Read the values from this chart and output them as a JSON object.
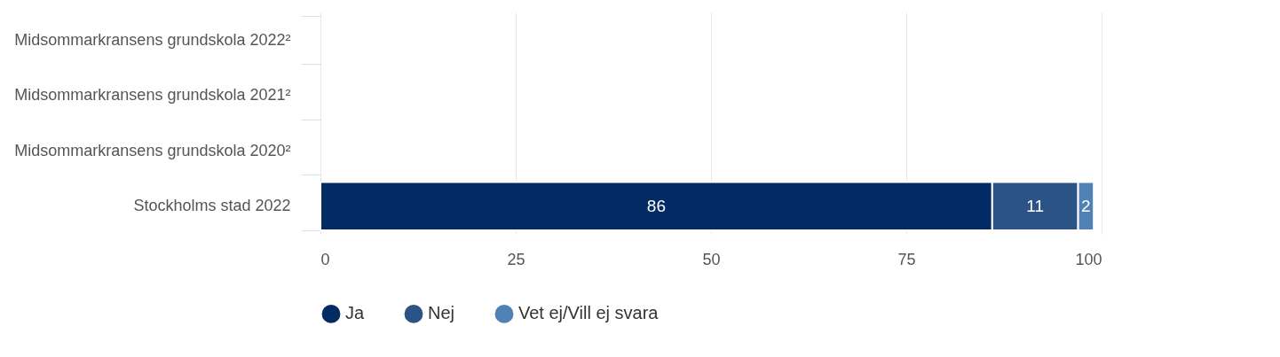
{
  "chart_data": {
    "type": "bar",
    "orientation": "horizontal",
    "stacked": true,
    "categories": [
      "Midsommarkransens grundskola   2022²",
      "Midsommarkransens grundskola   2021²",
      "Midsommarkransens grundskola   2020²",
      "Stockholms stad   2022"
    ],
    "series": [
      {
        "name": "Ja",
        "color": "#022b63",
        "values": [
          null,
          null,
          null,
          86
        ]
      },
      {
        "name": "Nej",
        "color": "#2c5386",
        "values": [
          null,
          null,
          null,
          11
        ]
      },
      {
        "name": "Vet ej/Vill ej svara",
        "color": "#5081b5",
        "values": [
          null,
          null,
          null,
          2
        ]
      }
    ],
    "xlim": [
      0,
      100
    ],
    "xticks": [
      0,
      25,
      50,
      75,
      100
    ],
    "grid": "x",
    "legend": "bottom",
    "data_labels": true
  }
}
